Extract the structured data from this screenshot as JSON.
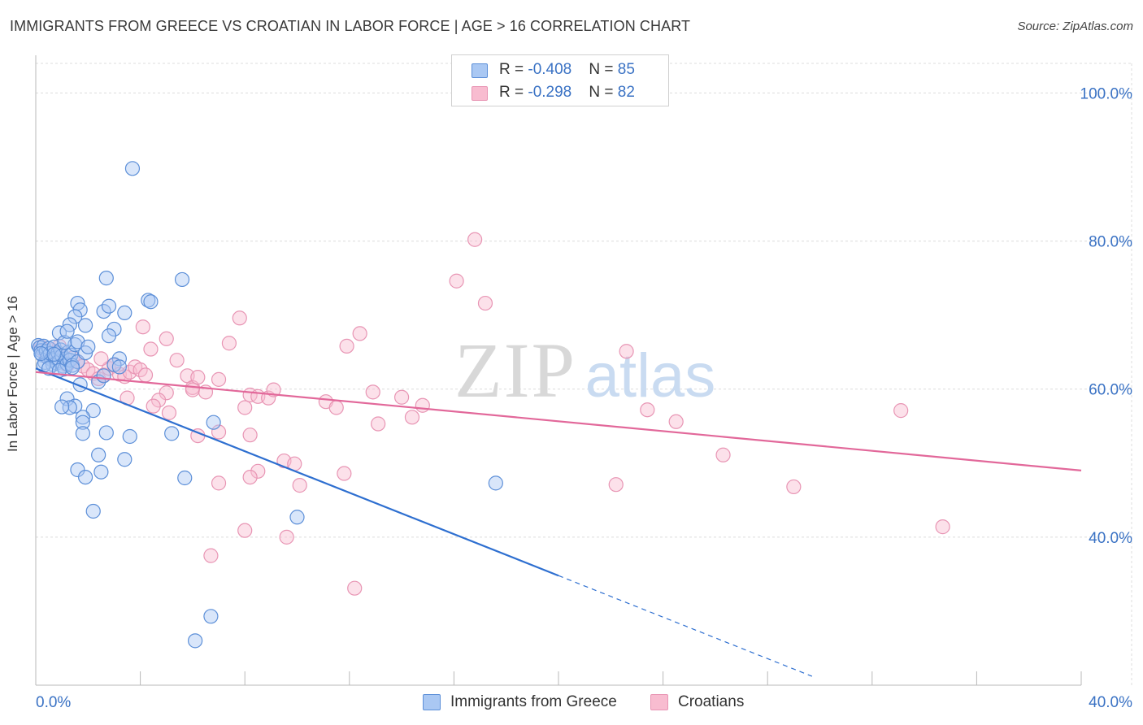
{
  "header": {
    "title": "IMMIGRANTS FROM GREECE VS CROATIAN IN LABOR FORCE | AGE > 16 CORRELATION CHART",
    "source": "Source: ZipAtlas.com"
  },
  "watermark": {
    "zip": "ZIP",
    "atlas": "atlas"
  },
  "legend_top": [
    {
      "r_label": "R = ",
      "r_value": "-0.408",
      "n_label": "N = ",
      "n_value": "85"
    },
    {
      "r_label": "R = ",
      "r_value": "-0.298",
      "n_label": "N = ",
      "n_value": "82"
    }
  ],
  "chart_data": {
    "type": "scatter",
    "title": "IMMIGRANTS FROM GREECE VS CROATIAN IN LABOR FORCE | AGE > 16 CORRELATION CHART",
    "xlabel": "",
    "ylabel": "In Labor Force | Age > 16",
    "xlim": [
      0,
      40
    ],
    "ylim": [
      20,
      104
    ],
    "x_tick_labels": [
      "0.0%",
      "40.0%"
    ],
    "y_ticks": [
      40,
      60,
      80,
      100
    ],
    "y_tick_labels": [
      "40.0%",
      "60.0%",
      "80.0%",
      "100.0%"
    ],
    "grid": true,
    "legend_placement": "bottom",
    "colors": {
      "greece_fill": "#aac8f3",
      "greece_stroke": "#5c8fd8",
      "greece_line": "#2e6fd0",
      "croatian_fill": "#f8bcd0",
      "croatian_stroke": "#e895b4",
      "croatian_line": "#e2689a",
      "value_text": "#3a72c4",
      "grid": "#dcdcdc"
    },
    "series": [
      {
        "name": "Immigrants from Greece",
        "r": -0.408,
        "n": 85,
        "trend": {
          "x0": 0,
          "y0": 62.8,
          "x1": 20,
          "y1": 34.8,
          "dash_to_x": 29.7,
          "dash_to_y": 21.2
        },
        "points": [
          [
            0.1,
            65.9
          ],
          [
            0.15,
            65.6
          ],
          [
            0.2,
            65.2
          ],
          [
            0.25,
            64.6
          ],
          [
            0.3,
            65.8
          ],
          [
            0.35,
            63.6
          ],
          [
            0.4,
            65.1
          ],
          [
            0.45,
            64.3
          ],
          [
            0.5,
            65.5
          ],
          [
            0.55,
            64.8
          ],
          [
            0.6,
            64.0
          ],
          [
            0.65,
            63.3
          ],
          [
            0.7,
            65.7
          ],
          [
            0.75,
            64.2
          ],
          [
            0.8,
            63.5
          ],
          [
            0.85,
            64.9
          ],
          [
            0.9,
            63.8
          ],
          [
            0.95,
            65.3
          ],
          [
            1.0,
            64.5
          ],
          [
            1.05,
            63.1
          ],
          [
            1.1,
            62.7
          ],
          [
            1.15,
            64.1
          ],
          [
            1.2,
            63.4
          ],
          [
            1.25,
            65.0
          ],
          [
            1.3,
            63.9
          ],
          [
            1.35,
            64.6
          ],
          [
            1.4,
            63.2
          ],
          [
            1.5,
            66.0
          ],
          [
            1.6,
            63.7
          ],
          [
            0.3,
            63.2
          ],
          [
            0.5,
            62.8
          ],
          [
            0.9,
            62.5
          ],
          [
            1.4,
            62.9
          ],
          [
            0.2,
            64.8
          ],
          [
            0.7,
            64.7
          ],
          [
            1.6,
            71.6
          ],
          [
            1.7,
            70.7
          ],
          [
            1.9,
            68.6
          ],
          [
            1.5,
            69.8
          ],
          [
            1.3,
            68.7
          ],
          [
            0.9,
            67.6
          ],
          [
            1.1,
            66.3
          ],
          [
            1.6,
            66.4
          ],
          [
            1.9,
            64.9
          ],
          [
            2.6,
            70.5
          ],
          [
            2.8,
            71.2
          ],
          [
            3.4,
            70.3
          ],
          [
            3.0,
            68.1
          ],
          [
            2.8,
            67.2
          ],
          [
            3.2,
            64.1
          ],
          [
            2.7,
            75.0
          ],
          [
            4.3,
            72.0
          ],
          [
            4.4,
            71.8
          ],
          [
            5.6,
            74.8
          ],
          [
            3.7,
            89.8
          ],
          [
            3.0,
            63.3
          ],
          [
            3.2,
            63.0
          ],
          [
            2.4,
            61.0
          ],
          [
            2.6,
            61.8
          ],
          [
            1.7,
            60.6
          ],
          [
            1.2,
            58.7
          ],
          [
            1.5,
            57.7
          ],
          [
            1.3,
            57.5
          ],
          [
            1.0,
            57.6
          ],
          [
            2.2,
            57.1
          ],
          [
            1.8,
            56.2
          ],
          [
            1.8,
            55.5
          ],
          [
            1.8,
            54.0
          ],
          [
            2.7,
            54.1
          ],
          [
            3.6,
            53.6
          ],
          [
            5.2,
            54.0
          ],
          [
            6.8,
            55.5
          ],
          [
            2.4,
            51.1
          ],
          [
            3.4,
            50.5
          ],
          [
            1.6,
            49.1
          ],
          [
            2.5,
            48.8
          ],
          [
            1.9,
            48.1
          ],
          [
            5.7,
            48.0
          ],
          [
            2.2,
            43.5
          ],
          [
            10.0,
            42.7
          ],
          [
            17.6,
            47.3
          ],
          [
            6.7,
            29.3
          ],
          [
            6.1,
            26.0
          ],
          [
            1.2,
            67.8
          ],
          [
            2.0,
            65.7
          ]
        ]
      },
      {
        "name": "Croatians",
        "r": -0.298,
        "n": 82,
        "trend": {
          "x0": 0,
          "y0": 62.3,
          "x1": 40,
          "y1": 49.0
        },
        "points": [
          [
            0.2,
            65.7
          ],
          [
            0.3,
            65.2
          ],
          [
            0.5,
            64.9
          ],
          [
            0.6,
            65.3
          ],
          [
            0.8,
            65.0
          ],
          [
            1.0,
            64.1
          ],
          [
            1.2,
            63.4
          ],
          [
            1.4,
            64.2
          ],
          [
            1.6,
            63.7
          ],
          [
            1.8,
            63.1
          ],
          [
            2.0,
            62.6
          ],
          [
            2.2,
            62.1
          ],
          [
            2.4,
            61.4
          ],
          [
            2.6,
            61.9
          ],
          [
            2.8,
            62.8
          ],
          [
            3.0,
            63.2
          ],
          [
            3.2,
            62.0
          ],
          [
            3.4,
            61.7
          ],
          [
            3.6,
            62.3
          ],
          [
            3.8,
            63.0
          ],
          [
            4.0,
            62.6
          ],
          [
            4.2,
            61.9
          ],
          [
            0.4,
            64.4
          ],
          [
            0.9,
            65.8
          ],
          [
            1.2,
            63.2
          ],
          [
            2.5,
            64.1
          ],
          [
            4.1,
            68.4
          ],
          [
            4.4,
            65.4
          ],
          [
            5.0,
            66.8
          ],
          [
            5.4,
            63.9
          ],
          [
            5.8,
            61.8
          ],
          [
            6.0,
            60.2
          ],
          [
            6.2,
            61.6
          ],
          [
            6.0,
            59.9
          ],
          [
            5.0,
            59.5
          ],
          [
            4.7,
            58.5
          ],
          [
            4.5,
            57.7
          ],
          [
            5.1,
            56.8
          ],
          [
            3.5,
            58.8
          ],
          [
            6.5,
            59.6
          ],
          [
            7.0,
            61.3
          ],
          [
            7.4,
            66.2
          ],
          [
            7.8,
            69.6
          ],
          [
            8.2,
            59.2
          ],
          [
            8.0,
            57.5
          ],
          [
            6.2,
            53.7
          ],
          [
            7.0,
            54.2
          ],
          [
            8.2,
            53.8
          ],
          [
            8.5,
            59.0
          ],
          [
            8.9,
            58.8
          ],
          [
            9.1,
            59.9
          ],
          [
            9.5,
            50.3
          ],
          [
            9.9,
            49.9
          ],
          [
            8.5,
            48.9
          ],
          [
            8.2,
            48.1
          ],
          [
            10.1,
            47.0
          ],
          [
            7.0,
            47.3
          ],
          [
            8.0,
            40.9
          ],
          [
            6.7,
            37.5
          ],
          [
            9.6,
            40.0
          ],
          [
            11.1,
            58.3
          ],
          [
            11.5,
            57.5
          ],
          [
            11.8,
            48.6
          ],
          [
            11.9,
            65.8
          ],
          [
            12.4,
            67.5
          ],
          [
            12.9,
            59.6
          ],
          [
            13.1,
            55.3
          ],
          [
            14.0,
            58.9
          ],
          [
            14.4,
            56.2
          ],
          [
            14.8,
            57.8
          ],
          [
            17.2,
            71.6
          ],
          [
            16.8,
            80.2
          ],
          [
            16.1,
            74.6
          ],
          [
            12.2,
            33.1
          ],
          [
            22.6,
            65.1
          ],
          [
            22.2,
            47.1
          ],
          [
            23.4,
            57.2
          ],
          [
            24.5,
            55.6
          ],
          [
            26.3,
            51.1
          ],
          [
            29.0,
            46.8
          ],
          [
            33.1,
            57.1
          ],
          [
            34.7,
            41.4
          ]
        ]
      }
    ]
  }
}
